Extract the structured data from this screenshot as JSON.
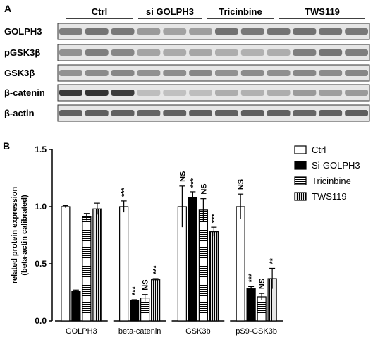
{
  "panel_a": {
    "letter": "A",
    "groups": [
      "Ctrl",
      "si GOLPH3",
      "Tricinbine",
      "TWS119"
    ],
    "rows": [
      "GOLPH3",
      "pGSK3β",
      "GSK3β",
      "β-catenin",
      "β-actin"
    ],
    "intensity": [
      [
        0.55,
        0.6,
        0.58,
        0.4,
        0.36,
        0.38,
        0.62,
        0.58,
        0.6,
        0.62,
        0.6,
        0.58
      ],
      [
        0.45,
        0.55,
        0.5,
        0.35,
        0.32,
        0.34,
        0.3,
        0.28,
        0.3,
        0.55,
        0.6,
        0.55
      ],
      [
        0.45,
        0.48,
        0.5,
        0.45,
        0.47,
        0.5,
        0.45,
        0.48,
        0.46,
        0.5,
        0.48,
        0.5
      ],
      [
        0.92,
        0.95,
        0.9,
        0.22,
        0.2,
        0.22,
        0.3,
        0.28,
        0.3,
        0.4,
        0.38,
        0.4
      ],
      [
        0.7,
        0.72,
        0.7,
        0.68,
        0.7,
        0.72,
        0.7,
        0.72,
        0.7,
        0.68,
        0.7,
        0.72
      ]
    ]
  },
  "chart_data": {
    "type": "bar",
    "panel_letter": "B",
    "categories": [
      "GOLPH3",
      "beta-catenin",
      "GSK3b",
      "pS9-GSK3b"
    ],
    "series": [
      {
        "name": "Ctrl",
        "values": [
          1.0,
          1.0,
          1.0,
          1.0
        ],
        "errors": [
          0.01,
          0.05,
          0.18,
          0.11
        ],
        "pattern": "open"
      },
      {
        "name": "Si-GOLPH3",
        "values": [
          0.26,
          0.18,
          1.08,
          0.28
        ],
        "errors": [
          0.01,
          0.005,
          0.05,
          0.02
        ],
        "pattern": "solid"
      },
      {
        "name": "Tricinbine",
        "values": [
          0.91,
          0.2,
          0.97,
          0.21
        ],
        "errors": [
          0.03,
          0.03,
          0.1,
          0.03
        ],
        "pattern": "horizontal"
      },
      {
        "name": "TWS119",
        "values": [
          0.98,
          0.36,
          0.78,
          0.37
        ],
        "errors": [
          0.05,
          0.01,
          0.04,
          0.09
        ],
        "pattern": "vertical"
      }
    ],
    "significance": [
      [
        "",
        "***",
        "NS",
        "NS"
      ],
      [
        "",
        "***",
        "***",
        "***"
      ],
      [
        "",
        "NS",
        "NS",
        "NS"
      ],
      [
        "",
        "***",
        "***",
        "**"
      ]
    ],
    "ylabel_line1": "related protein expression",
    "ylabel_line2": "(beta-actin calibrated)",
    "ylim": [
      0,
      1.5
    ],
    "yticks": [
      "0.0",
      "0.5",
      "1.0",
      "1.5"
    ],
    "ytick_values": [
      0,
      0.5,
      1.0,
      1.5
    ],
    "legend_placement": "top-right"
  }
}
